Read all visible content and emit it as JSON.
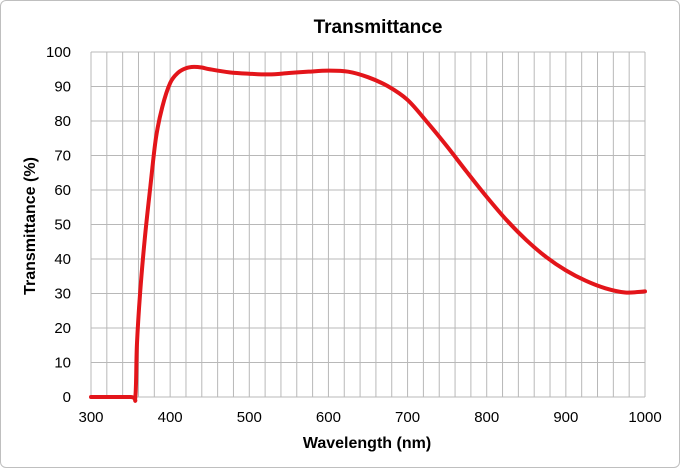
{
  "chart_data": {
    "type": "line",
    "title": "Transmittance",
    "xlabel": "Wavelength (nm)",
    "ylabel": "Transmittance (%)",
    "xlim": [
      300,
      1000
    ],
    "ylim": [
      0,
      100
    ],
    "xticks": [
      300,
      400,
      500,
      600,
      700,
      800,
      900,
      1000
    ],
    "yticks": [
      0,
      10,
      20,
      30,
      40,
      50,
      60,
      70,
      80,
      90,
      100
    ],
    "x_minor_grid_step": 20,
    "y_major_grid_step": 10,
    "grid": true,
    "legend": "none",
    "line_color": "#e3151a",
    "grid_color": "#b8b8b8",
    "series": [
      {
        "x": [
          300,
          350,
          356,
          358,
          362,
          368,
          375,
          382,
          390,
          400,
          410,
          420,
          430,
          440,
          450,
          475,
          500,
          525,
          550,
          575,
          600,
          625,
          650,
          675,
          700,
          725,
          750,
          775,
          800,
          825,
          850,
          875,
          900,
          925,
          950,
          975,
          1000
        ],
        "y": [
          0,
          0,
          0,
          15,
          30,
          46,
          61,
          75,
          84,
          91,
          94,
          95.3,
          95.7,
          95.5,
          95,
          94.1,
          93.7,
          93.5,
          93.9,
          94.3,
          94.6,
          94.3,
          92.7,
          90.1,
          86.1,
          79.6,
          72.6,
          65.2,
          58,
          51.3,
          45.5,
          40.6,
          36.7,
          33.7,
          31.5,
          30.3,
          30.6
        ]
      }
    ]
  }
}
